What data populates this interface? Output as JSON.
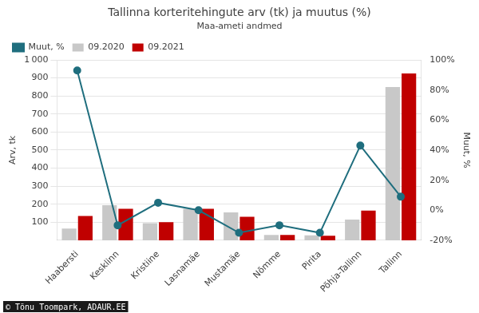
{
  "chart_data": {
    "type": "bar",
    "title": "Tallinna korteritehingute arv (tk) ja muutus (%)",
    "subtitle": "Maa-ameti andmed",
    "ylabel": "Arv, tk",
    "y2label": "Muut, %",
    "annotations": [
      "© Tõnu Toompark, ADAUR.EE"
    ],
    "categories": [
      "Haabersti",
      "Kesklinn",
      "Kristiine",
      "Lasnamäe",
      "Mustamäe",
      "Nõmme",
      "Pirita",
      "Põhja-Tallinn",
      "Tallinn"
    ],
    "series": [
      {
        "name": "09.2020",
        "color": "#c8c8c8",
        "values": [
          65,
          195,
          95,
          175,
          155,
          30,
          27,
          115,
          850
        ]
      },
      {
        "name": "09.2021",
        "color": "#c00000",
        "values": [
          135,
          175,
          100,
          175,
          130,
          30,
          25,
          165,
          925
        ]
      },
      {
        "name": "Muut, %",
        "type": "line",
        "axis": "y2",
        "color": "#1f6e7e",
        "marker": "circle",
        "values": [
          93,
          -10,
          5,
          0,
          -15,
          -10,
          -15,
          43,
          9
        ]
      }
    ],
    "ylim": [
      0,
      1000
    ],
    "yticks": [
      100,
      200,
      300,
      400,
      500,
      600,
      700,
      800,
      900,
      {
        "value": 1000,
        "label": "1 000"
      }
    ],
    "y2lim": [
      -20,
      100
    ],
    "y2ticks": [
      {
        "value": -20,
        "label": "-20%"
      },
      {
        "value": 0,
        "label": "0%"
      },
      {
        "value": 20,
        "label": "20%"
      },
      {
        "value": 40,
        "label": "40%"
      },
      {
        "value": 60,
        "label": "60%"
      },
      {
        "value": 80,
        "label": "80%"
      },
      {
        "value": 100,
        "label": "100%"
      }
    ],
    "grid": true,
    "legend": "upper left"
  }
}
